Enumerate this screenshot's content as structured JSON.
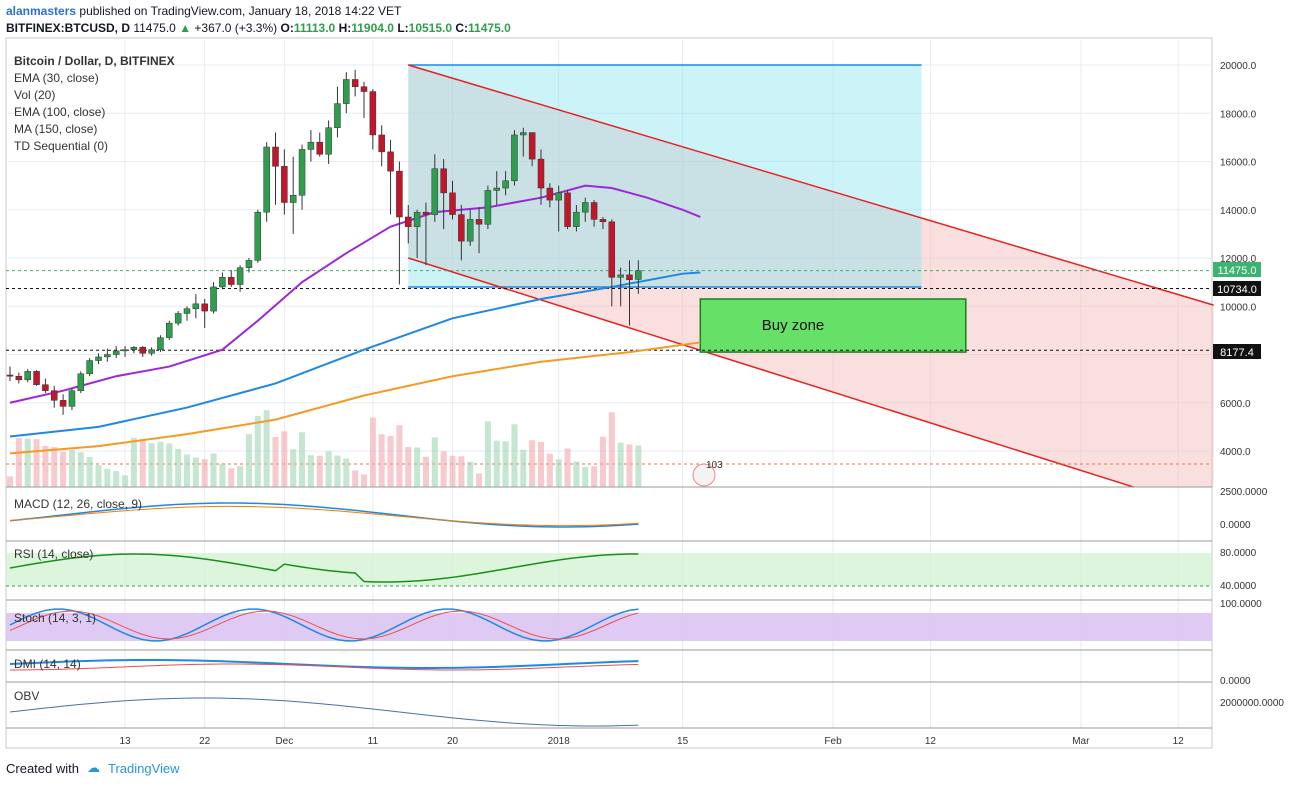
{
  "header": {
    "user": "alanmasters",
    "published_text": "published on TradingView.com, January 18, 2018 14:22 VET",
    "symbol": "BITFINEX:BTCUSD, D",
    "last": "11475.0",
    "change": "+367.0 (+3.3%)",
    "o_label": "O:",
    "o": "11113.0",
    "h_label": "H:",
    "h": "11904.0",
    "l_label": "L:",
    "l": "10515.0",
    "c_label": "C:",
    "c": "11475.0"
  },
  "legend": [
    "Bitcoin / Dollar, D, BITFINEX",
    "EMA (30, close)",
    "Vol (20)",
    "EMA (100, close)",
    "MA (150, close)",
    "TD Sequential (0)"
  ],
  "annotation": "Buy zone",
  "price_labels": {
    "current": "11475.0",
    "line1": "10734.0",
    "line2": "8177.4"
  },
  "indicators": {
    "macd": "MACD (12, 26, close, 9)",
    "rsi": "RSI (14, close)",
    "stoch": "Stoch (14, 3, 1)",
    "dmi": "DMI (14, 14)",
    "obv": "OBV"
  },
  "indicator_ticks": {
    "macd": [
      "2500.0000",
      "0.0000"
    ],
    "rsi": [
      "80.0000",
      "40.0000"
    ],
    "stoch": [
      "100.0000"
    ],
    "dmi": [
      "0.0000"
    ],
    "obv": [
      "2000000.0000"
    ]
  },
  "badge": "103",
  "footer": {
    "created_with": "Created with",
    "brand": "TradingView"
  },
  "colors": {
    "bull": "#2e9e4e",
    "bear": "#c2162a",
    "ema30": "#9c27d9",
    "ema100": "#1e88e5",
    "ma150": "#f59a23",
    "channel": "#e82020",
    "buyzone": "#66e066"
  },
  "chart_data": {
    "type": "candlestick",
    "title": "Bitcoin / Dollar, D, BITFINEX",
    "y_ticks": [
      4000,
      6000,
      8000,
      10000,
      12000,
      14000,
      16000,
      18000,
      20000
    ],
    "ylim": [
      2500,
      21000
    ],
    "x_ticks": [
      {
        "label": "13",
        "day": 13
      },
      {
        "label": "22",
        "day": 22
      },
      {
        "label": "Dec",
        "day": 31
      },
      {
        "label": "11",
        "day": 41
      },
      {
        "label": "20",
        "day": 50
      },
      {
        "label": "2018",
        "day": 62
      },
      {
        "label": "15",
        "day": 76
      },
      {
        "label": "Feb",
        "day": 93
      },
      {
        "label": "12",
        "day": 104
      },
      {
        "label": "Mar",
        "day": 121
      },
      {
        "label": "12",
        "day": 132
      }
    ],
    "candles": [
      [
        7150,
        7500,
        6900,
        7100
      ],
      [
        7100,
        7250,
        6800,
        6950
      ],
      [
        6950,
        7400,
        6850,
        7300
      ],
      [
        7300,
        7350,
        6700,
        6750
      ],
      [
        6750,
        7000,
        6400,
        6500
      ],
      [
        6500,
        6700,
        5800,
        6100
      ],
      [
        6100,
        6350,
        5500,
        5850
      ],
      [
        5850,
        6600,
        5700,
        6500
      ],
      [
        6500,
        7300,
        6400,
        7200
      ],
      [
        7200,
        7850,
        7100,
        7750
      ],
      [
        7750,
        8050,
        7600,
        7900
      ],
      [
        7900,
        8250,
        7700,
        8000
      ],
      [
        8000,
        8350,
        7850,
        8150
      ],
      [
        8150,
        8350,
        7900,
        8200
      ],
      [
        8200,
        8350,
        8050,
        8300
      ],
      [
        8300,
        8350,
        7900,
        8050
      ],
      [
        8050,
        8300,
        7950,
        8200
      ],
      [
        8200,
        8800,
        8100,
        8700
      ],
      [
        8700,
        9400,
        8600,
        9300
      ],
      [
        9300,
        9800,
        9200,
        9700
      ],
      [
        9700,
        10000,
        9400,
        9900
      ],
      [
        9900,
        10500,
        9500,
        10100
      ],
      [
        10100,
        10300,
        9100,
        9800
      ],
      [
        9800,
        11000,
        9700,
        10800
      ],
      [
        10800,
        11400,
        10700,
        11200
      ],
      [
        11200,
        11500,
        10800,
        10900
      ],
      [
        10900,
        11700,
        10600,
        11600
      ],
      [
        11600,
        12000,
        11400,
        11900
      ],
      [
        11900,
        14000,
        11800,
        13900
      ],
      [
        13900,
        16800,
        13500,
        16600
      ],
      [
        16600,
        17200,
        14200,
        15800
      ],
      [
        15800,
        16500,
        13800,
        14300
      ],
      [
        14300,
        16200,
        13000,
        14600
      ],
      [
        14600,
        16700,
        14000,
        16500
      ],
      [
        16500,
        17300,
        16000,
        16800
      ],
      [
        16800,
        17200,
        16200,
        16300
      ],
      [
        16300,
        17700,
        15900,
        17400
      ],
      [
        17400,
        19100,
        17000,
        18400
      ],
      [
        18400,
        19700,
        18000,
        19400
      ],
      [
        19400,
        19800,
        18700,
        19100
      ],
      [
        19100,
        19300,
        17800,
        18900
      ],
      [
        18900,
        19000,
        16500,
        17100
      ],
      [
        17100,
        17500,
        15800,
        16400
      ],
      [
        16400,
        16900,
        13800,
        15600
      ],
      [
        15600,
        16000,
        10900,
        13700
      ],
      [
        13700,
        14200,
        12600,
        13300
      ],
      [
        13300,
        14000,
        12000,
        13900
      ],
      [
        13900,
        14300,
        11700,
        13800
      ],
      [
        13800,
        16300,
        13500,
        15700
      ],
      [
        15700,
        16100,
        13200,
        14700
      ],
      [
        14700,
        15200,
        13600,
        13800
      ],
      [
        13800,
        14200,
        11900,
        12700
      ],
      [
        12700,
        14000,
        12500,
        13600
      ],
      [
        13600,
        14100,
        12200,
        13400
      ],
      [
        13400,
        15000,
        13200,
        14800
      ],
      [
        14800,
        15600,
        14200,
        14900
      ],
      [
        14900,
        15600,
        14600,
        15200
      ],
      [
        15200,
        17300,
        15000,
        17100
      ],
      [
        17100,
        17400,
        16200,
        17200
      ],
      [
        17200,
        17200,
        15800,
        16100
      ],
      [
        16100,
        16500,
        14200,
        14900
      ],
      [
        14900,
        15100,
        14100,
        14400
      ],
      [
        14400,
        15000,
        13100,
        14700
      ],
      [
        14700,
        14800,
        13200,
        13300
      ],
      [
        13300,
        14200,
        13100,
        13900
      ],
      [
        13900,
        14500,
        13500,
        14300
      ],
      [
        14300,
        14400,
        13300,
        13600
      ],
      [
        13600,
        13700,
        13200,
        13500
      ],
      [
        13500,
        13600,
        10000,
        11200
      ],
      [
        11200,
        11600,
        10000,
        11300
      ],
      [
        11300,
        11900,
        9200,
        11100
      ],
      [
        11113,
        11904,
        10515,
        11475
      ]
    ],
    "ema30": [
      [
        0,
        6000
      ],
      [
        6,
        6500
      ],
      [
        12,
        7100
      ],
      [
        18,
        7500
      ],
      [
        24,
        8200
      ],
      [
        28,
        9400
      ],
      [
        33,
        11000
      ],
      [
        38,
        12200
      ],
      [
        43,
        13300
      ],
      [
        48,
        13900
      ],
      [
        54,
        14100
      ],
      [
        60,
        14500
      ],
      [
        65,
        15000
      ],
      [
        68,
        14900
      ],
      [
        72,
        14500
      ],
      [
        76,
        14000
      ],
      [
        78,
        13700
      ]
    ],
    "ema100": [
      [
        0,
        4600
      ],
      [
        10,
        5000
      ],
      [
        20,
        5800
      ],
      [
        30,
        6800
      ],
      [
        40,
        8200
      ],
      [
        50,
        9500
      ],
      [
        60,
        10300
      ],
      [
        68,
        10800
      ],
      [
        76,
        11350
      ],
      [
        78,
        11400
      ]
    ],
    "ma150": [
      [
        0,
        3900
      ],
      [
        10,
        4200
      ],
      [
        20,
        4700
      ],
      [
        30,
        5300
      ],
      [
        40,
        6300
      ],
      [
        50,
        7100
      ],
      [
        60,
        7700
      ],
      [
        70,
        8100
      ],
      [
        78,
        8500
      ]
    ],
    "channel_upper": [
      [
        45,
        20000
      ],
      [
        141,
        9500
      ]
    ],
    "channel_lower": [
      [
        45,
        12000
      ],
      [
        127,
        2500
      ]
    ],
    "zone_rect": {
      "x0": 45,
      "x1": 103,
      "y0": 10800,
      "y1": 20000
    },
    "buy_zone": {
      "x0": 78,
      "x1": 108,
      "y0": 8100,
      "y1": 10300
    },
    "levels": [
      10734,
      8177.4,
      11475
    ]
  }
}
